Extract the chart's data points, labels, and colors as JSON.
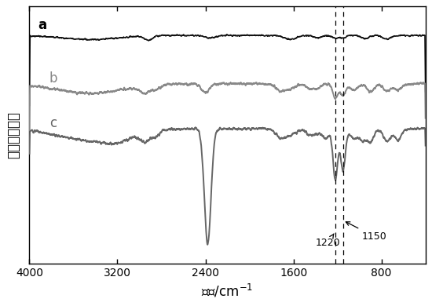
{
  "title": "",
  "xlabel": "波数/cm$^{-1}$",
  "ylabel": "相对衍射强度",
  "xmin": 4000,
  "xmax": 400,
  "xticks": [
    4000,
    3200,
    2400,
    1600,
    800
  ],
  "dashed_lines": [
    1220,
    1150
  ],
  "label_a": "a",
  "label_b": "b",
  "label_c": "c",
  "color_a": "#111111",
  "color_b": "#888888",
  "color_c": "#666666",
  "annotation_1220": "1220",
  "annotation_1150": "1150",
  "bg_color": "#ffffff"
}
